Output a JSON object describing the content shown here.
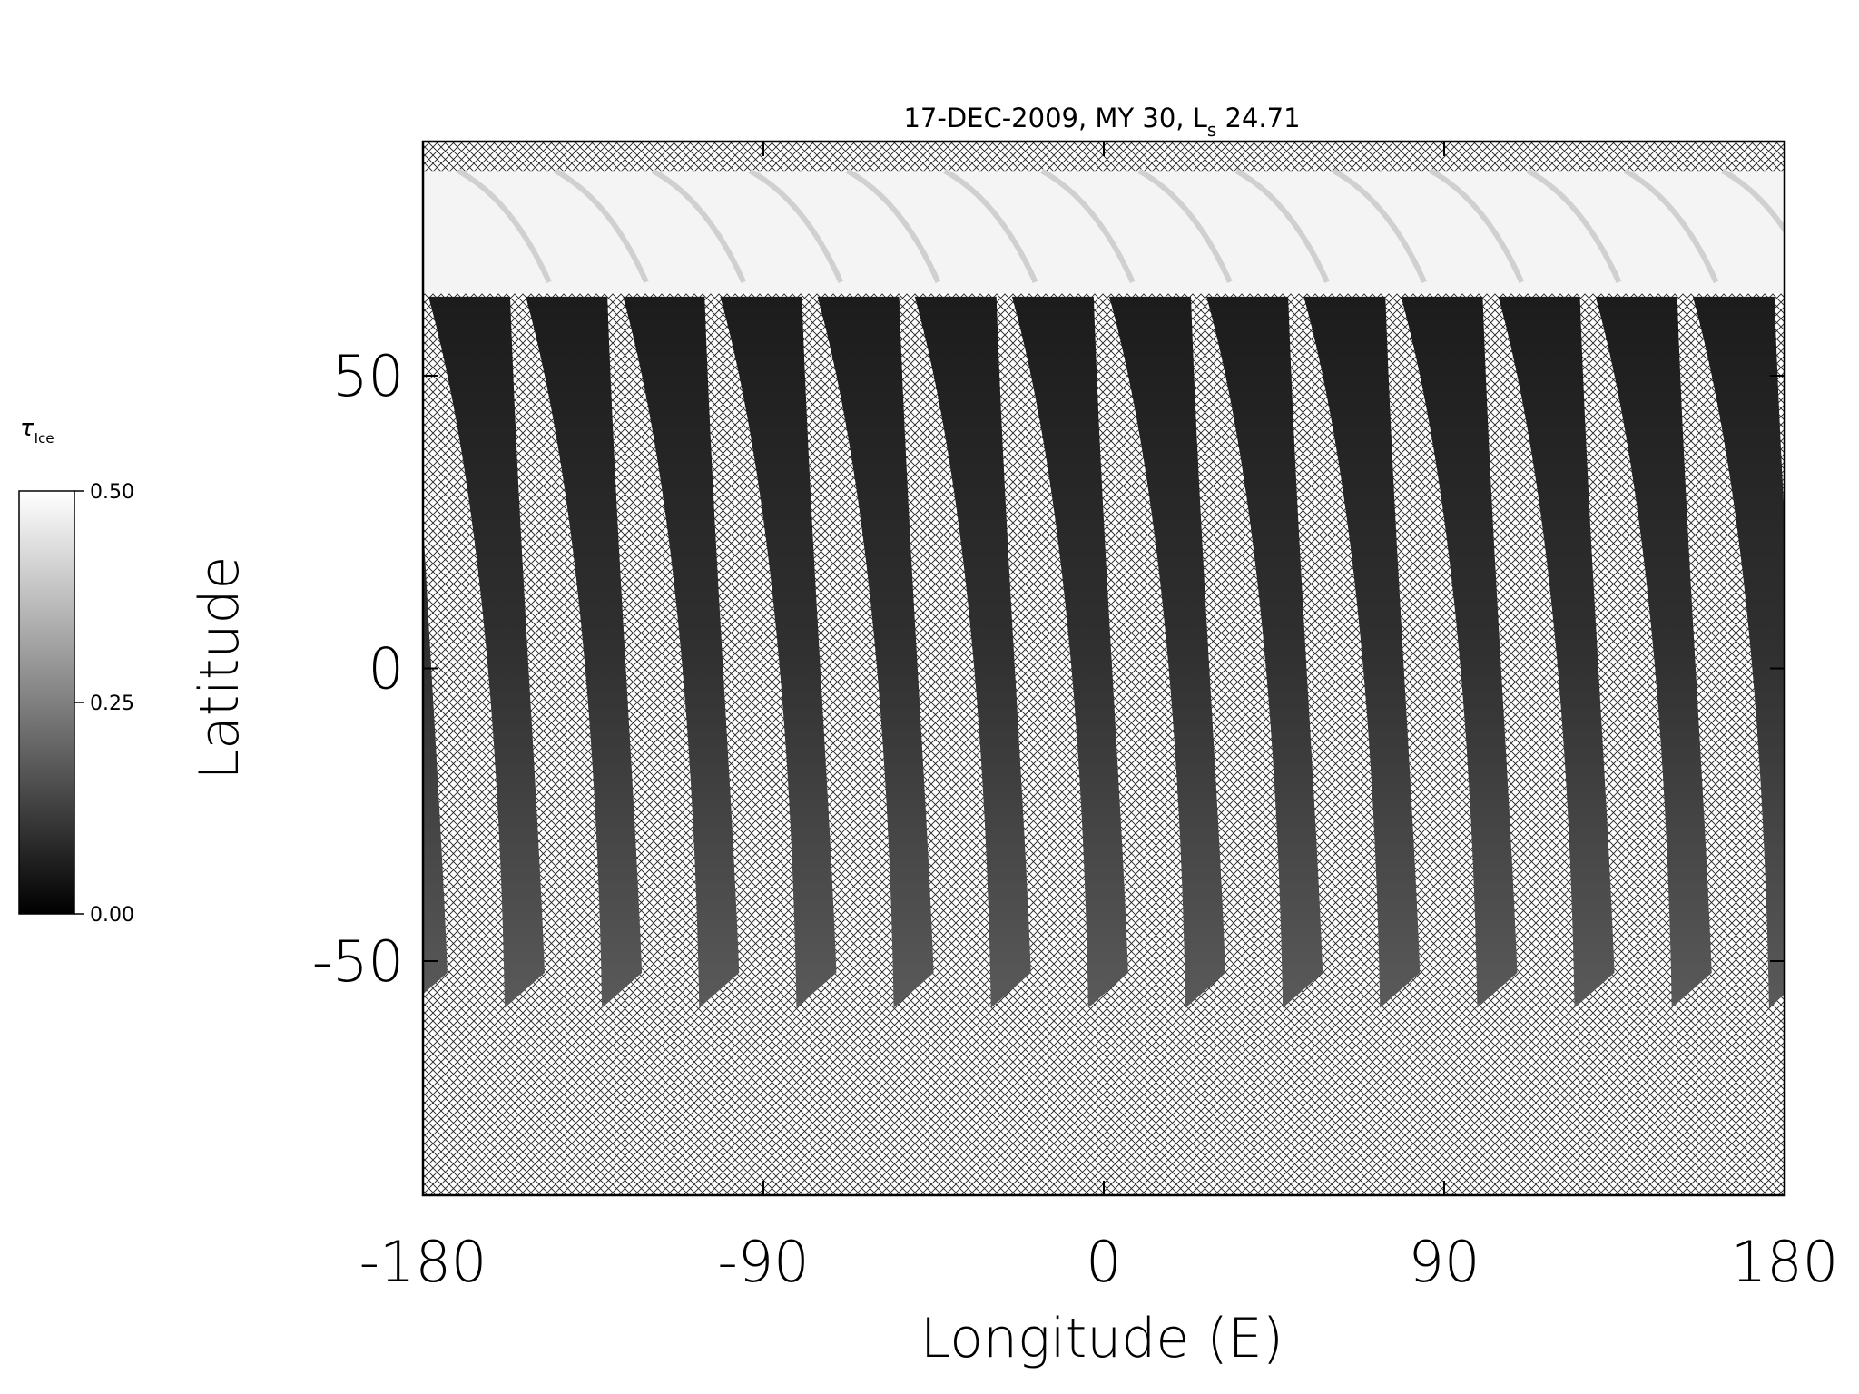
{
  "chart_data": {
    "type": "map",
    "title": {
      "text": "17-DEC-2009, MY 30,  L",
      "subscript": "s",
      "tail": " 24.71"
    },
    "xlabel": "Longitude (E)",
    "ylabel": "Latitude",
    "xlim": [
      -180,
      180
    ],
    "xticks": [
      -180,
      -90,
      0,
      90,
      180
    ],
    "ylim": [
      -90,
      90
    ],
    "yticks": [
      -50,
      0,
      50
    ],
    "colorbar": {
      "label": "τ",
      "label_subscript": "Ice",
      "lim": [
        0,
        0.5
      ],
      "ticks": [
        {
          "value": 0,
          "label": "0.00"
        },
        {
          "value": 0.25,
          "label": "0.25"
        },
        {
          "value": 0.5,
          "label": "0.50"
        }
      ]
    }
  }
}
